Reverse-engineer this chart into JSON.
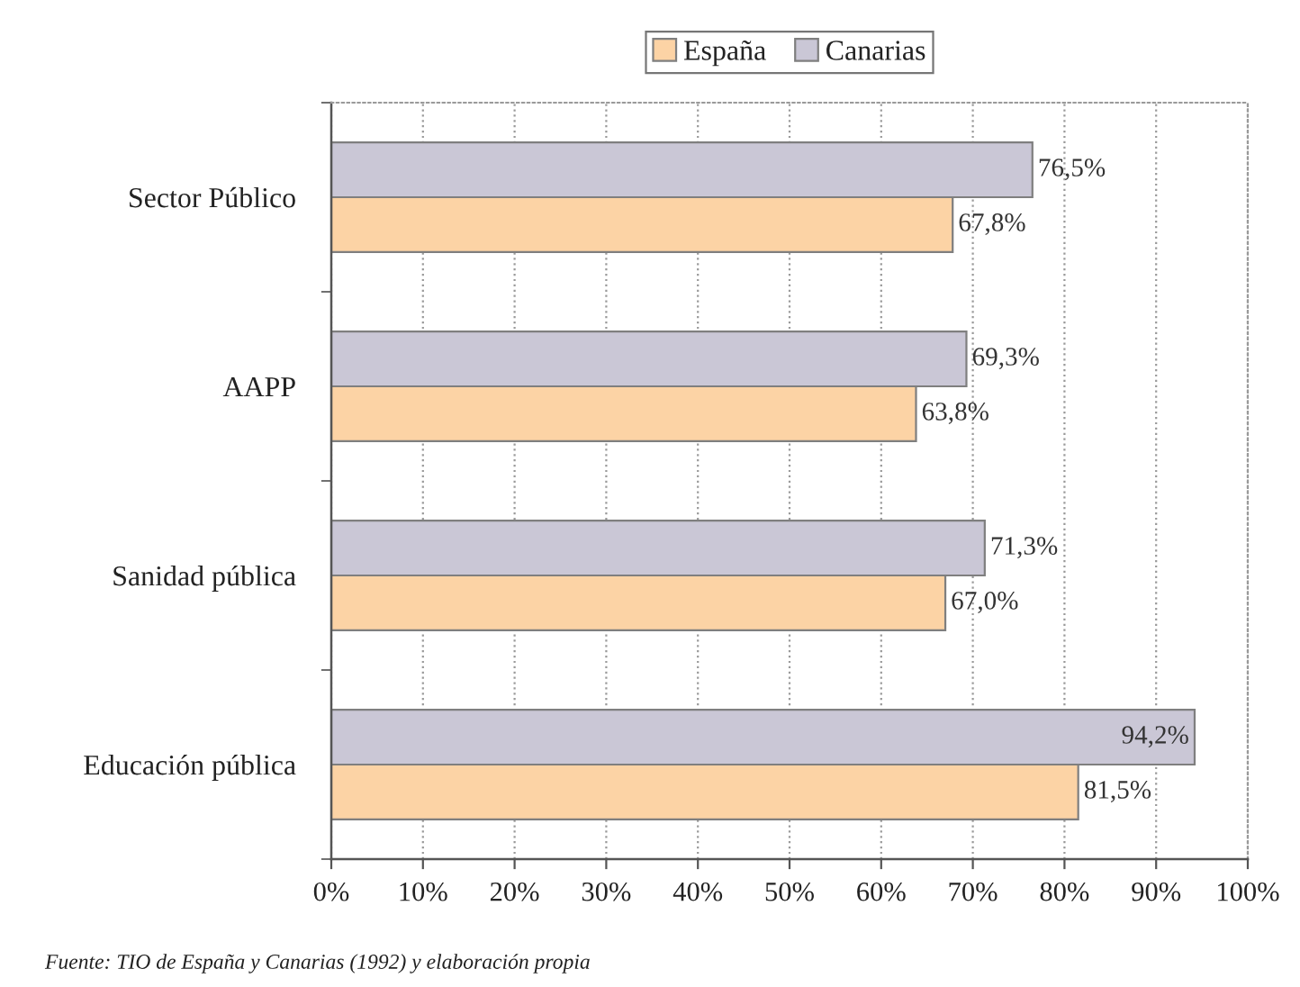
{
  "chart_data": {
    "type": "bar",
    "orientation": "horizontal",
    "categories": [
      "Sector Público",
      "AAPP",
      "Sanidad pública",
      "Educación pública"
    ],
    "series": [
      {
        "name": "España",
        "color": "#fcd3a5",
        "values": [
          67.8,
          63.8,
          67.0,
          81.5
        ],
        "value_labels": [
          "67,8%",
          "63,8%",
          "67,0%",
          "81,5%"
        ]
      },
      {
        "name": "Canarias",
        "color": "#cac7d6",
        "values": [
          76.5,
          69.3,
          71.3,
          94.2
        ],
        "value_labels": [
          "76,5%",
          "69,3%",
          "71,3%",
          "94,2%"
        ]
      }
    ],
    "xlim": [
      0,
      100
    ],
    "xticks": [
      {
        "value": 0,
        "label": "0%"
      },
      {
        "value": 10,
        "label": "10%"
      },
      {
        "value": 20,
        "label": "20%"
      },
      {
        "value": 30,
        "label": "30%"
      },
      {
        "value": 40,
        "label": "40%"
      },
      {
        "value": 50,
        "label": "50%"
      },
      {
        "value": 60,
        "label": "60%"
      },
      {
        "value": 70,
        "label": "70%"
      },
      {
        "value": 80,
        "label": "80%"
      },
      {
        "value": 90,
        "label": "90%"
      },
      {
        "value": 100,
        "label": "100%"
      }
    ],
    "grid": "x",
    "legend": "top",
    "annotations": [
      "Fuente: TIO de España y Canarias (1992) y elaboración propia"
    ]
  }
}
